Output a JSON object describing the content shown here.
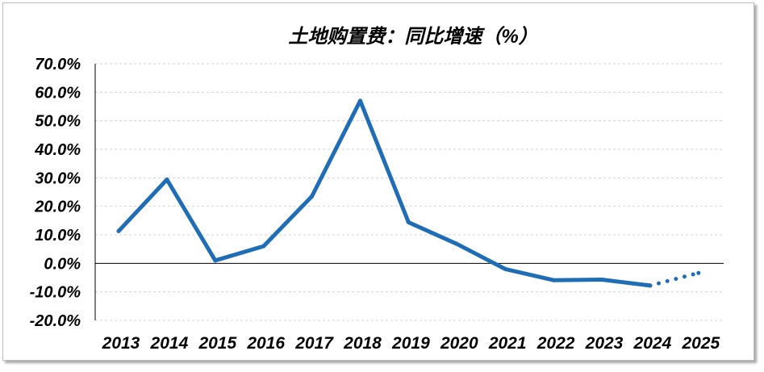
{
  "chart_data": {
    "type": "line",
    "title": "土地购置费：同比增速（%）",
    "categories": [
      "2013",
      "2014",
      "2015",
      "2016",
      "2017",
      "2018",
      "2019",
      "2020",
      "2021",
      "2022",
      "2023",
      "2024",
      "2025"
    ],
    "series": [
      {
        "values": [
          11.3,
          29.4,
          1.0,
          6.0,
          23.5,
          57.0,
          14.4,
          6.8,
          -2.0,
          -5.9,
          -5.7,
          -7.8,
          -3.4
        ],
        "color": "#1f6db4",
        "last_segment_dotted": true
      }
    ],
    "ylim": [
      -20,
      70
    ],
    "yticks": [
      70,
      60,
      50,
      40,
      30,
      20,
      10,
      0,
      -10,
      -20
    ],
    "ytick_labels": [
      "70.0%",
      "60.0%",
      "50.0%",
      "40.0%",
      "30.0%",
      "20.0%",
      "10.0%",
      "0.0%",
      "-10.0%",
      "-20.0%"
    ],
    "grid": true,
    "zero_line": true
  }
}
